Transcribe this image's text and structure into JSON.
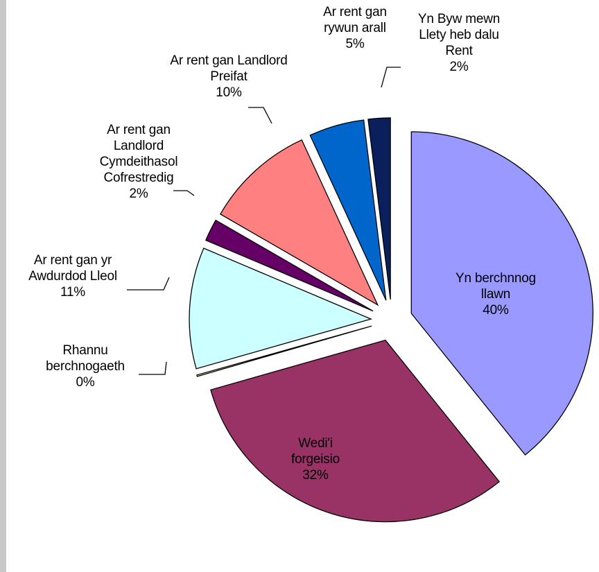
{
  "chart_data": {
    "type": "pie",
    "categories": [
      "Yn berchnnog llawn",
      "Wedi'i forgeisio",
      "Rhannu berchnogaeth",
      "Ar rent gan yr Awdurdod Lleol",
      "Ar rent gan Landlord Cymdeithasol Cofrestredig",
      "Ar rent gan Landlord Preifat",
      "Ar rent gan rywun arall",
      "Yn Byw mewn Llety heb dalu Rent"
    ],
    "values": [
      40,
      32,
      0,
      11,
      2,
      10,
      5,
      2
    ],
    "value_labels": [
      "40%",
      "32%",
      "0%",
      "11%",
      "2%",
      "10%",
      "5%",
      "2%"
    ],
    "colors": [
      "#9999ff",
      "#993366",
      "#ffffcc",
      "#ccffff",
      "#660066",
      "#ff8080",
      "#0066cc",
      "#0a1f5c"
    ]
  }
}
